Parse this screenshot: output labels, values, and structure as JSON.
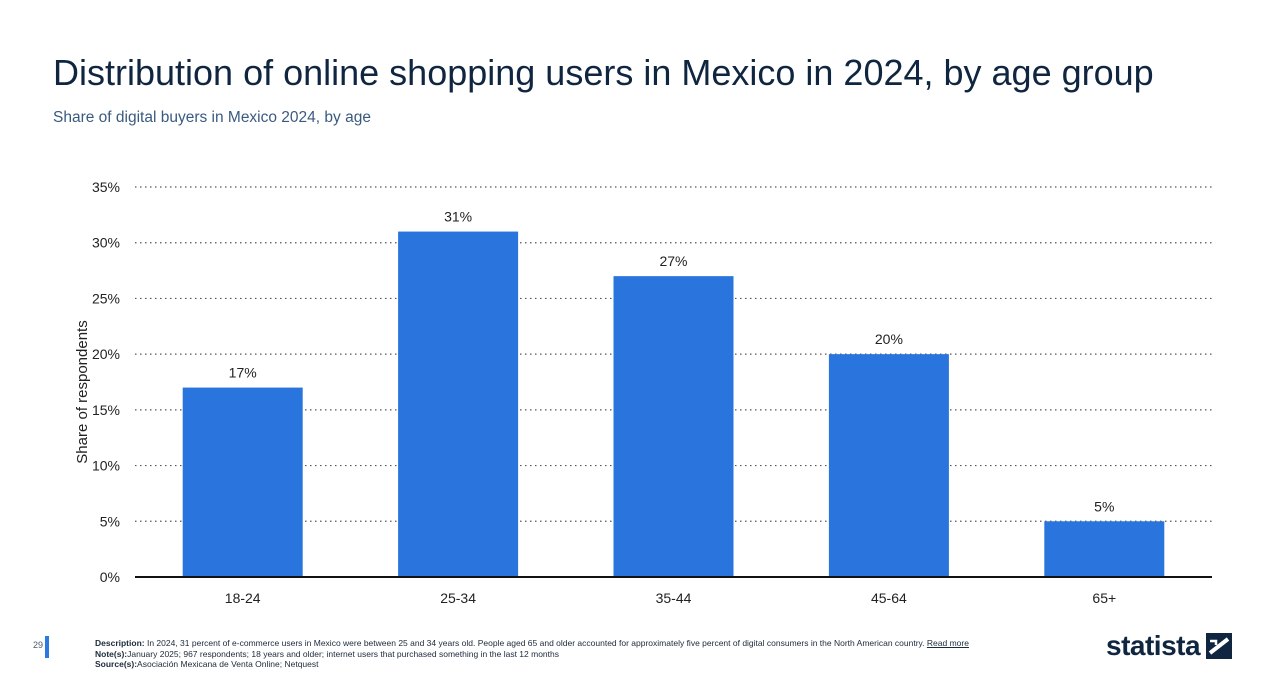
{
  "header": {
    "title": "Distribution of online shopping users in Mexico in 2024, by age group",
    "subtitle": "Share of digital buyers in Mexico 2024, by age"
  },
  "chart_data": {
    "type": "bar",
    "categories": [
      "18-24",
      "25-34",
      "35-44",
      "45-64",
      "65+"
    ],
    "values": [
      17,
      31,
      27,
      20,
      5
    ],
    "data_labels": [
      "17%",
      "31%",
      "27%",
      "20%",
      "5%"
    ],
    "ylabel": "Share of respondents",
    "xlabel": "",
    "ylim": [
      0,
      35
    ],
    "yticks": [
      0,
      5,
      10,
      15,
      20,
      25,
      30,
      35
    ],
    "ytick_labels": [
      "0%",
      "5%",
      "10%",
      "15%",
      "20%",
      "25%",
      "30%",
      "35%"
    ],
    "grid": true,
    "bar_color": "#2a75dd"
  },
  "footer": {
    "page_number": "29",
    "description_label": "Description:",
    "description": "In 2024, 31 percent of e-commerce users in Mexico were between 25 and 34 years old. People aged 65 and older accounted for approximately five percent of digital consumers in the North American country.",
    "read_more": "Read more",
    "notes_label": "Note(s):",
    "notes": "January 2025; 967 respondents; 18 years and older;  internet users that purchased something in the last 12 months",
    "sources_label": "Source(s):",
    "sources": "Asociación Mexicana de Venta Online; Netquest"
  },
  "brand": {
    "logo_text": "statista",
    "logo_icon": "statista-logo-icon"
  }
}
